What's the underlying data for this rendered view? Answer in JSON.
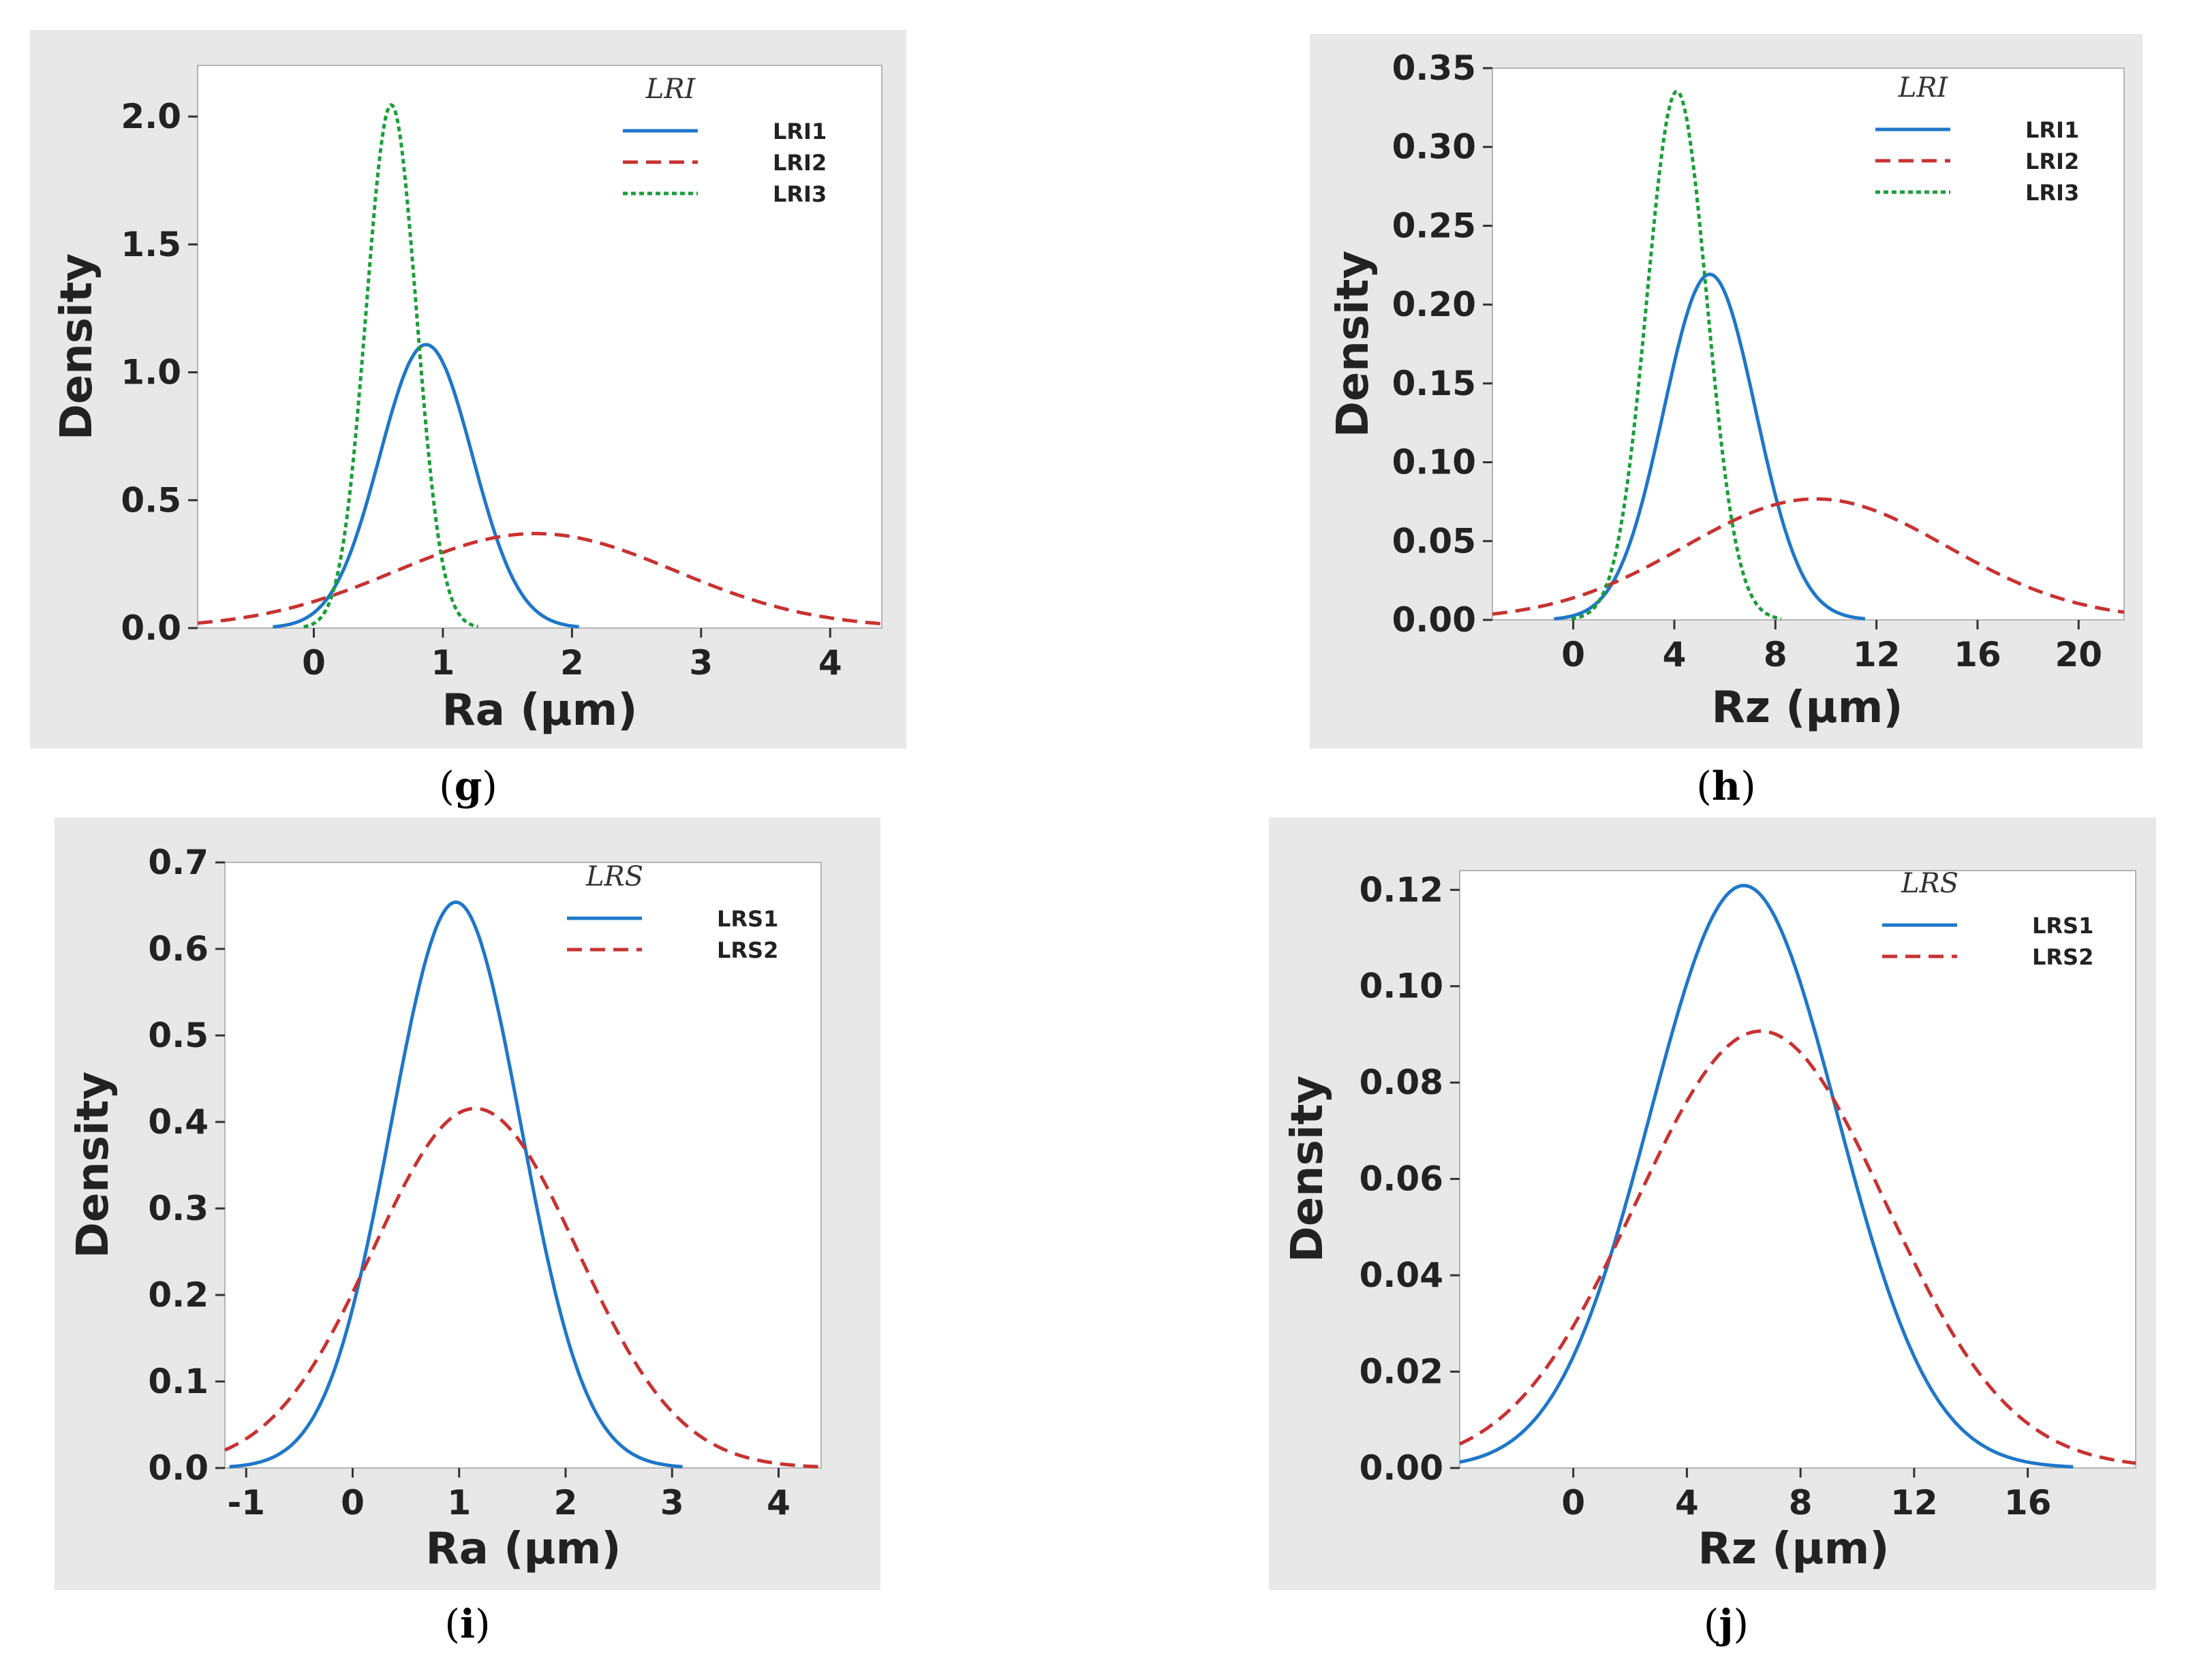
{
  "panels": [
    {
      "id": "g",
      "caption_letter": "g",
      "chart_data": {
        "type": "line",
        "title": "",
        "xlabel": "Ra (µm)",
        "ylabel": "Density",
        "xlim": [
          -0.9,
          4.4
        ],
        "ylim": [
          0.0,
          2.2
        ],
        "xticks": [
          0,
          1,
          2,
          3,
          4
        ],
        "xtick_labels": [
          "0",
          "1",
          "2",
          "3",
          "4"
        ],
        "yticks": [
          0.0,
          0.5,
          1.0,
          1.5,
          2.0
        ],
        "ytick_labels": [
          "0.0",
          "0.5",
          "1.0",
          "1.5",
          "2.0"
        ],
        "legend_title": "LRI",
        "series": [
          {
            "name": "LRI1",
            "color": "#1f77c8",
            "style": "solid",
            "mean": 0.87,
            "sd": 0.36
          },
          {
            "name": "LRI2",
            "color": "#c83232",
            "style": "dashed",
            "mean": 1.72,
            "sd": 1.08
          },
          {
            "name": "LRI3",
            "color": "#1a9e3a",
            "style": "dotted",
            "mean": 0.6,
            "sd": 0.195
          }
        ]
      }
    },
    {
      "id": "h",
      "caption_letter": "h",
      "chart_data": {
        "type": "line",
        "title": "",
        "xlabel": "Rz (µm)",
        "ylabel": "Density",
        "xlim": [
          -3.2,
          21.8
        ],
        "ylim": [
          0.0,
          0.35
        ],
        "xticks": [
          0,
          4,
          8,
          12,
          16,
          20
        ],
        "xtick_labels": [
          "0",
          "4",
          "8",
          "12",
          "16",
          "20"
        ],
        "yticks": [
          0.0,
          0.05,
          0.1,
          0.15,
          0.2,
          0.25,
          0.3,
          0.35
        ],
        "ytick_labels": [
          "0.00",
          "0.05",
          "0.10",
          "0.15",
          "0.20",
          "0.25",
          "0.30",
          "0.35"
        ],
        "legend_title": "LRI",
        "series": [
          {
            "name": "LRI1",
            "color": "#1f77c8",
            "style": "solid",
            "mean": 5.4,
            "sd": 1.82
          },
          {
            "name": "LRI2",
            "color": "#c83232",
            "style": "dashed",
            "mean": 9.6,
            "sd": 5.2
          },
          {
            "name": "LRI3",
            "color": "#1a9e3a",
            "style": "dotted",
            "mean": 4.1,
            "sd": 1.19
          }
        ]
      }
    },
    {
      "id": "i",
      "caption_letter": "i",
      "chart_data": {
        "type": "line",
        "title": "",
        "xlabel": "Ra (µm)",
        "ylabel": "Density",
        "xlim": [
          -1.2,
          4.4
        ],
        "ylim": [
          0.0,
          0.7
        ],
        "xticks": [
          -1,
          0,
          1,
          2,
          3,
          4
        ],
        "xtick_labels": [
          "-1",
          "0",
          "1",
          "2",
          "3",
          "4"
        ],
        "yticks": [
          0.0,
          0.1,
          0.2,
          0.3,
          0.4,
          0.5,
          0.6,
          0.7
        ],
        "ytick_labels": [
          "0.0",
          "0.1",
          "0.2",
          "0.3",
          "0.4",
          "0.5",
          "0.6",
          "0.7"
        ],
        "legend_title": "LRS",
        "series": [
          {
            "name": "LRS1",
            "color": "#1f77c8",
            "style": "solid",
            "mean": 0.97,
            "sd": 0.61
          },
          {
            "name": "LRS2",
            "color": "#c83232",
            "style": "dashed",
            "mean": 1.15,
            "sd": 0.96
          }
        ]
      }
    },
    {
      "id": "j",
      "caption_letter": "j",
      "chart_data": {
        "type": "line",
        "title": "",
        "xlabel": "Rz (µm)",
        "ylabel": "Density",
        "xlim": [
          -4.0,
          19.8
        ],
        "ylim": [
          0.0,
          0.124
        ],
        "xticks": [
          0,
          4,
          8,
          12,
          16
        ],
        "xtick_labels": [
          "0",
          "4",
          "8",
          "12",
          "16"
        ],
        "yticks": [
          0.0,
          0.02,
          0.04,
          0.06,
          0.08,
          0.1,
          0.12
        ],
        "ytick_labels": [
          "0.00",
          "0.02",
          "0.04",
          "0.06",
          "0.08",
          "0.10",
          "0.12"
        ],
        "legend_title": "LRS",
        "series": [
          {
            "name": "LRS1",
            "color": "#1f77c8",
            "style": "solid",
            "mean": 6.0,
            "sd": 3.3
          },
          {
            "name": "LRS2",
            "color": "#c83232",
            "style": "dashed",
            "mean": 6.6,
            "sd": 4.4
          }
        ]
      }
    }
  ]
}
